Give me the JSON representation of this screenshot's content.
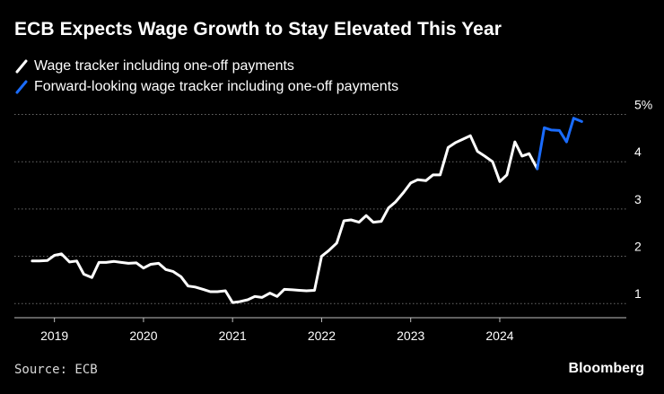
{
  "chart_data": {
    "type": "line",
    "title": "ECB Expects Wage Growth to Stay Elevated This Year",
    "xlabel": "",
    "ylabel": "",
    "ylim": [
      0.7,
      5.2
    ],
    "y_ticks": [
      1,
      2,
      3,
      4,
      5
    ],
    "y_tick_labels": [
      "1",
      "2",
      "3",
      "4",
      "5%"
    ],
    "x_ticks": [
      2019,
      2020,
      2021,
      2022,
      2023,
      2024
    ],
    "x_tick_labels": [
      "2019",
      "2020",
      "2021",
      "2022",
      "2023",
      "2024"
    ],
    "xlim": [
      2018.55,
      2025.3
    ],
    "grid": true,
    "legend_position": "top-left",
    "series": [
      {
        "name": "Wage tracker including one-off payments",
        "color": "#ffffff",
        "x": [
          2018.75,
          2018.83,
          2018.92,
          2019.0,
          2019.08,
          2019.17,
          2019.25,
          2019.33,
          2019.42,
          2019.5,
          2019.58,
          2019.67,
          2019.75,
          2019.83,
          2019.92,
          2020.0,
          2020.08,
          2020.17,
          2020.25,
          2020.33,
          2020.42,
          2020.5,
          2020.58,
          2020.67,
          2020.75,
          2020.83,
          2020.92,
          2021.0,
          2021.08,
          2021.17,
          2021.25,
          2021.33,
          2021.42,
          2021.5,
          2021.58,
          2021.67,
          2021.75,
          2021.83,
          2021.92,
          2022.0,
          2022.08,
          2022.17,
          2022.25,
          2022.33,
          2022.42,
          2022.5,
          2022.58,
          2022.67,
          2022.75,
          2022.83,
          2022.92,
          2023.0,
          2023.08,
          2023.17,
          2023.25,
          2023.33,
          2023.42,
          2023.5,
          2023.58,
          2023.67,
          2023.75,
          2023.83,
          2023.92,
          2024.0,
          2024.08,
          2024.17,
          2024.25,
          2024.33,
          2024.42
        ],
        "y": [
          1.9,
          1.9,
          1.91,
          2.02,
          2.05,
          1.88,
          1.9,
          1.62,
          1.55,
          1.87,
          1.87,
          1.89,
          1.87,
          1.85,
          1.86,
          1.75,
          1.83,
          1.85,
          1.72,
          1.68,
          1.57,
          1.37,
          1.35,
          1.3,
          1.25,
          1.25,
          1.27,
          1.02,
          1.04,
          1.08,
          1.15,
          1.13,
          1.22,
          1.15,
          1.3,
          1.29,
          1.28,
          1.27,
          1.28,
          2.0,
          2.12,
          2.28,
          2.75,
          2.77,
          2.72,
          2.86,
          2.72,
          2.74,
          3.02,
          3.15,
          3.35,
          3.55,
          3.62,
          3.6,
          3.72,
          3.72,
          4.3,
          4.4,
          4.47,
          4.55,
          4.22,
          4.12,
          4.0,
          3.58,
          3.72,
          4.42,
          4.12,
          4.17,
          3.85
        ]
      },
      {
        "name": "Forward-looking wage tracker including one-off payments",
        "color": "#1a6cff",
        "x": [
          2024.42,
          2024.5,
          2024.58,
          2024.67,
          2024.75,
          2024.83,
          2024.92
        ],
        "y": [
          3.85,
          4.72,
          4.67,
          4.66,
          4.42,
          4.92,
          4.85
        ]
      }
    ]
  },
  "legend": {
    "items": [
      {
        "label": "Wage tracker including one-off payments",
        "color": "#ffffff"
      },
      {
        "label": "Forward-looking wage tracker including one-off payments",
        "color": "#1a6cff"
      }
    ]
  },
  "footer": {
    "source": "Source: ECB",
    "brand": "Bloomberg"
  }
}
